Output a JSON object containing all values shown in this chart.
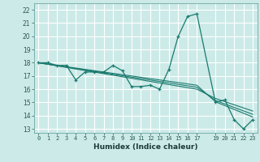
{
  "title": "",
  "xlabel": "Humidex (Indice chaleur)",
  "bg_color": "#cceae8",
  "grid_color": "#ffffff",
  "line_color": "#1a7a6e",
  "xlim": [
    -0.5,
    23.5
  ],
  "ylim": [
    12.7,
    22.5
  ],
  "yticks": [
    13,
    14,
    15,
    16,
    17,
    18,
    19,
    20,
    21,
    22
  ],
  "xticks": [
    0,
    1,
    2,
    3,
    4,
    5,
    6,
    7,
    8,
    9,
    10,
    11,
    12,
    13,
    14,
    15,
    16,
    17,
    19,
    20,
    21,
    22,
    23
  ],
  "xtick_labels": [
    "0",
    "1",
    "2",
    "3",
    "4",
    "5",
    "6",
    "7",
    "8",
    "9",
    "10",
    "11",
    "12",
    "13",
    "14",
    "15",
    "16",
    "17",
    "19",
    "20",
    "21",
    "22",
    "23"
  ],
  "series1": {
    "x": [
      0,
      1,
      2,
      3,
      4,
      5,
      6,
      7,
      8,
      9,
      10,
      11,
      12,
      13,
      14,
      15,
      16,
      17,
      19,
      20,
      21,
      22,
      23
    ],
    "y": [
      18,
      18,
      17.8,
      17.8,
      16.7,
      17.3,
      17.3,
      17.3,
      17.8,
      17.4,
      16.2,
      16.2,
      16.3,
      16.0,
      17.5,
      20.0,
      21.5,
      21.7,
      15.0,
      15.2,
      13.7,
      13.0,
      13.7
    ]
  },
  "series2": {
    "x": [
      0,
      17,
      19,
      23
    ],
    "y": [
      18.0,
      16.3,
      15.05,
      13.9
    ]
  },
  "series3": {
    "x": [
      0,
      17,
      19,
      23
    ],
    "y": [
      18.0,
      16.15,
      15.15,
      14.1
    ]
  },
  "series4": {
    "x": [
      0,
      17,
      19,
      23
    ],
    "y": [
      18.0,
      16.0,
      15.3,
      14.35
    ]
  }
}
